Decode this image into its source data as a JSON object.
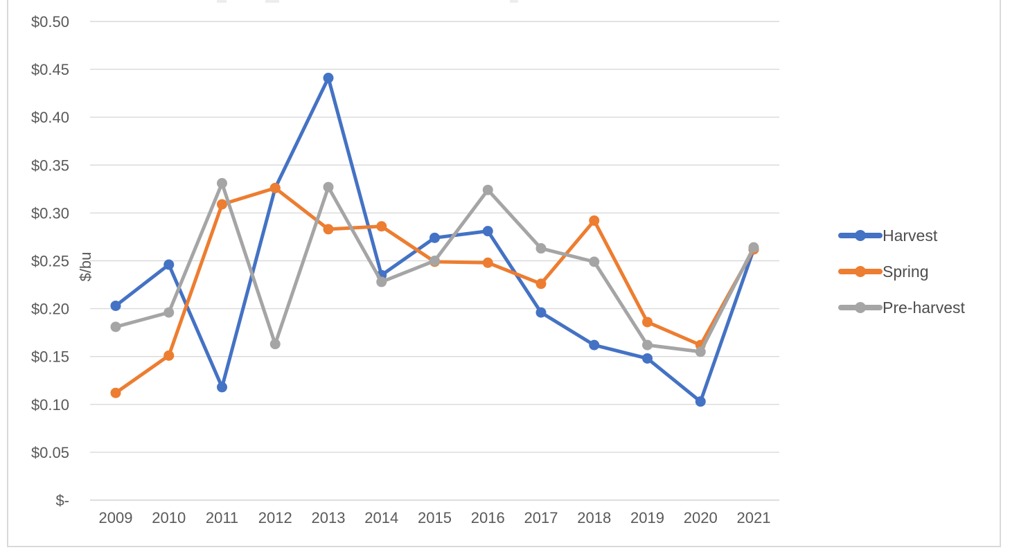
{
  "chart_data": {
    "type": "line",
    "x": [
      2009,
      2010,
      2011,
      2012,
      2013,
      2014,
      2015,
      2016,
      2017,
      2018,
      2019,
      2020,
      2021
    ],
    "series": [
      {
        "name": "Harvest",
        "color": "#4472C4",
        "values": [
          0.203,
          0.246,
          0.118,
          0.326,
          0.441,
          0.235,
          0.274,
          0.281,
          0.196,
          0.162,
          0.148,
          0.103,
          0.262
        ]
      },
      {
        "name": "Spring",
        "color": "#ED7D31",
        "values": [
          0.112,
          0.151,
          0.309,
          0.326,
          0.283,
          0.286,
          0.249,
          0.248,
          0.226,
          0.292,
          0.186,
          0.162,
          0.262
        ]
      },
      {
        "name": "Pre-harvest",
        "color": "#A5A5A5",
        "values": [
          0.181,
          0.196,
          0.331,
          0.163,
          0.327,
          0.228,
          0.25,
          0.324,
          0.263,
          0.249,
          0.162,
          0.155,
          0.264
        ]
      }
    ],
    "title": "",
    "xlabel": "",
    "ylabel": "$/bu",
    "ylim": [
      0,
      0.5
    ],
    "ytick_step": 0.05,
    "ytick_labels": [
      "$-",
      "$0.05",
      "$0.10",
      "$0.15",
      "$0.20",
      "$0.25",
      "$0.30",
      "$0.35",
      "$0.40",
      "$0.45",
      "$0.50"
    ],
    "grid": true,
    "legend_position": "right",
    "colors": {
      "gridline": "#d9d9d9",
      "axis_text": "#595959",
      "frame_border": "#d9d9d9"
    }
  }
}
